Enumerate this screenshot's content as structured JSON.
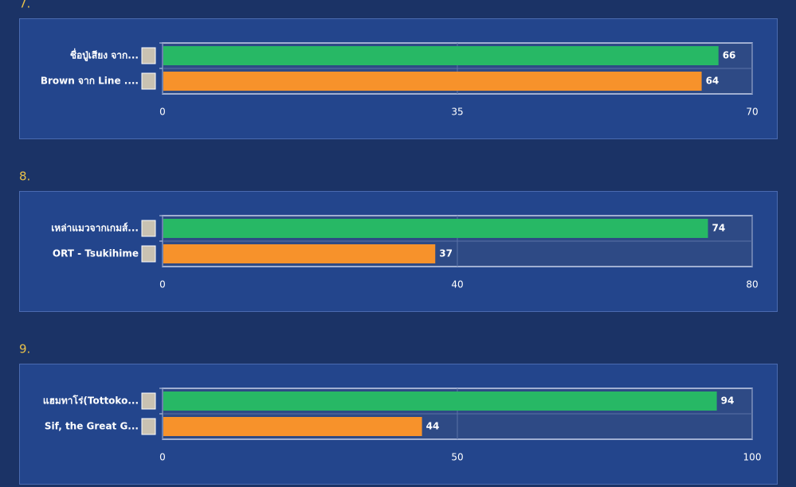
{
  "chart_data": [
    {
      "type": "bar",
      "orientation": "horizontal",
      "title": "7.",
      "categories": [
        "ชื่อปู่เสียง จาก...",
        "Brown จาก Line ...."
      ],
      "values": [
        66,
        64
      ],
      "colors": [
        "#27b865",
        "#f7922b"
      ],
      "xlim": [
        0,
        70
      ],
      "xticks": [
        0,
        35,
        70
      ],
      "grid": true
    },
    {
      "type": "bar",
      "orientation": "horizontal",
      "title": "8.",
      "categories": [
        "เหล่าแมวจากเกมส์...",
        "ORT - Tsukihime"
      ],
      "values": [
        74,
        37
      ],
      "colors": [
        "#27b865",
        "#f7922b"
      ],
      "xlim": [
        0,
        80
      ],
      "xticks": [
        0,
        40,
        80
      ],
      "grid": true
    },
    {
      "type": "bar",
      "orientation": "horizontal",
      "title": "9.",
      "categories": [
        "แฮมทาโร่(Tottoko...",
        "Sif, the Great G..."
      ],
      "values": [
        94,
        44
      ],
      "colors": [
        "#27b865",
        "#f7922b"
      ],
      "xlim": [
        0,
        100
      ],
      "xticks": [
        0,
        50,
        100
      ],
      "grid": true
    }
  ]
}
